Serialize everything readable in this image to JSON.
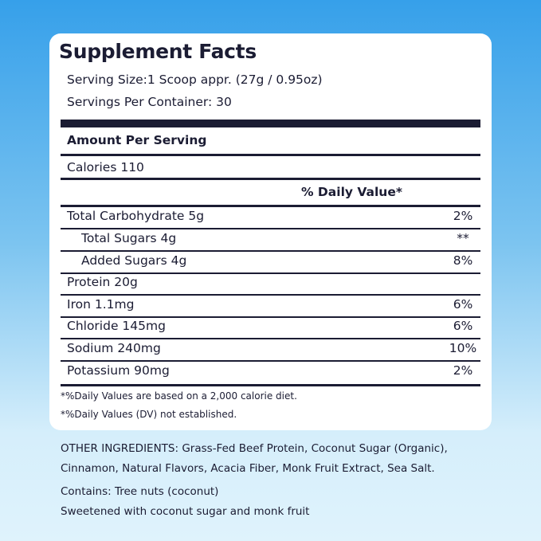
{
  "title": "Supplement Facts",
  "serving_size": "Serving Size:1 Scoop appr. (27g / 0.95oz)",
  "servings_per_container": "Servings Per Container: 30",
  "amount_per_serving": "Amount Per Serving",
  "calories": "Calories 110",
  "daily_value_header": "% Daily Value*",
  "rows": [
    {
      "name": "Total Carbohydrate 5g",
      "dv": "2%"
    },
    {
      "name": "Total Sugars 4g",
      "dv": "**"
    },
    {
      "name": "Added Sugars 4g",
      "dv": "8%"
    },
    {
      "name": "Protein 20g",
      "dv": ""
    },
    {
      "name": "Iron 1.1mg",
      "dv": "6%"
    },
    {
      "name": "Chloride 145mg",
      "dv": "6%"
    },
    {
      "name": "Sodium 240mg",
      "dv": "10%"
    },
    {
      "name": "Potassium 90mg",
      "dv": "2%"
    }
  ],
  "footnotes": [
    "*%Daily Values are based on a 2,000 calorie diet.",
    "*%Daily Values (DV) not established."
  ],
  "ingredients": [
    "OTHER INGREDIENTS: Grass-Fed Beef Protein, Coconut Sugar (Organic),",
    "Cinnamon, Natural Flavors, Acacia Fiber, Monk Fruit Extract, Sea Salt."
  ],
  "contains": "Contains: Tree nuts (coconut)",
  "sweetened": "Sweetened with coconut sugar and monk fruit"
}
